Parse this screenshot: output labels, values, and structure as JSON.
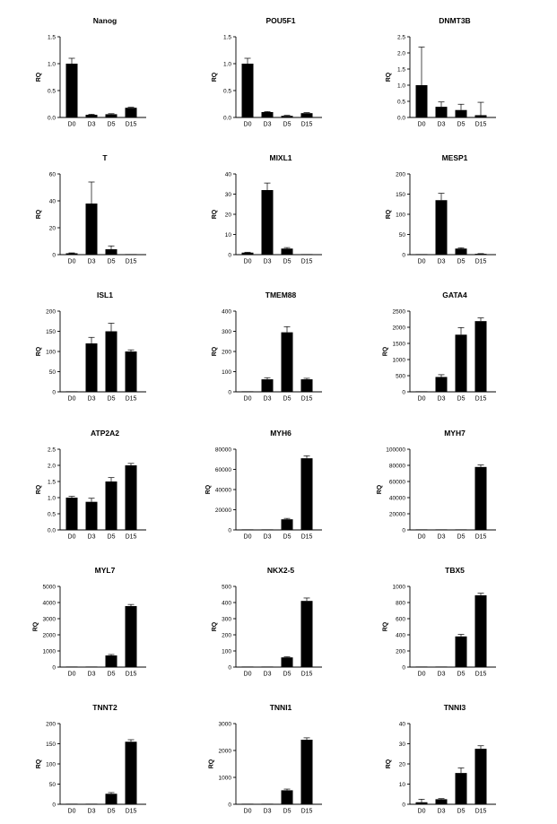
{
  "chart_data": [
    {
      "type": "bar",
      "title": "Nanog",
      "ylabel": "RQ",
      "categories": [
        "D0",
        "D3",
        "D5",
        "D15"
      ],
      "values": [
        1.0,
        0.05,
        0.06,
        0.18
      ],
      "errors": [
        0.1,
        0.01,
        0.01,
        0.01
      ],
      "ylim": [
        0,
        1.5
      ],
      "yticks": [
        "0.0",
        "0.5",
        "1.0",
        "1.5"
      ]
    },
    {
      "type": "bar",
      "title": "POU5F1",
      "ylabel": "RQ",
      "categories": [
        "D0",
        "D3",
        "D5",
        "D15"
      ],
      "values": [
        1.0,
        0.1,
        0.03,
        0.08
      ],
      "errors": [
        0.1,
        0.01,
        0.01,
        0.01
      ],
      "ylim": [
        0,
        1.5
      ],
      "yticks": [
        "0.0",
        "0.5",
        "1.0",
        "1.5"
      ]
    },
    {
      "type": "bar",
      "title": "DNMT3B",
      "ylabel": "RQ",
      "categories": [
        "D0",
        "D3",
        "D5",
        "D15"
      ],
      "values": [
        1.0,
        0.33,
        0.23,
        0.07
      ],
      "errors": [
        1.18,
        0.15,
        0.18,
        0.4
      ],
      "ylim": [
        0,
        2.5
      ],
      "yticks": [
        "0.0",
        "0.5",
        "1.0",
        "1.5",
        "2.0",
        "2.5"
      ]
    },
    {
      "type": "bar",
      "title": "T",
      "ylabel": "RQ",
      "categories": [
        "D0",
        "D3",
        "D5",
        "D15"
      ],
      "values": [
        1.0,
        38,
        4,
        0.2
      ],
      "errors": [
        0.3,
        16,
        2.5,
        0.1
      ],
      "ylim": [
        0,
        60
      ],
      "yticks": [
        "0",
        "20",
        "40",
        "60"
      ]
    },
    {
      "type": "bar",
      "title": "MIXL1",
      "ylabel": "RQ",
      "categories": [
        "D0",
        "D3",
        "D5",
        "D15"
      ],
      "values": [
        1.0,
        32,
        3,
        0.2
      ],
      "errors": [
        0.2,
        3.5,
        0.5,
        0.1
      ],
      "ylim": [
        0,
        40
      ],
      "yticks": [
        "0",
        "10",
        "20",
        "30",
        "40"
      ]
    },
    {
      "type": "bar",
      "title": "MESP1",
      "ylabel": "RQ",
      "categories": [
        "D0",
        "D3",
        "D5",
        "D15"
      ],
      "values": [
        1.0,
        135,
        15,
        2
      ],
      "errors": [
        0.2,
        17,
        2,
        0.5
      ],
      "ylim": [
        0,
        200
      ],
      "yticks": [
        "0",
        "50",
        "100",
        "150",
        "200"
      ]
    },
    {
      "type": "bar",
      "title": "ISL1",
      "ylabel": "RQ",
      "categories": [
        "D0",
        "D3",
        "D5",
        "D15"
      ],
      "values": [
        1.0,
        120,
        150,
        100
      ],
      "errors": [
        0.1,
        15,
        20,
        4
      ],
      "ylim": [
        0,
        200
      ],
      "yticks": [
        "0",
        "50",
        "100",
        "150",
        "200"
      ]
    },
    {
      "type": "bar",
      "title": "TMEM88",
      "ylabel": "RQ",
      "categories": [
        "D0",
        "D3",
        "D5",
        "D15"
      ],
      "values": [
        1.0,
        62,
        295,
        62
      ],
      "errors": [
        0.1,
        8,
        28,
        5
      ],
      "ylim": [
        0,
        400
      ],
      "yticks": [
        "0",
        "100",
        "200",
        "300",
        "400"
      ]
    },
    {
      "type": "bar",
      "title": "GATA4",
      "ylabel": "RQ",
      "categories": [
        "D0",
        "D3",
        "D5",
        "D15"
      ],
      "values": [
        1.0,
        460,
        1770,
        2190
      ],
      "errors": [
        0.1,
        70,
        220,
        100
      ],
      "ylim": [
        0,
        2500
      ],
      "yticks": [
        "0",
        "500",
        "1000",
        "1500",
        "2000",
        "2500"
      ]
    },
    {
      "type": "bar",
      "title": "ATP2A2",
      "ylabel": "RQ",
      "categories": [
        "D0",
        "D3",
        "D5",
        "D15"
      ],
      "values": [
        1.0,
        0.87,
        1.5,
        2.0
      ],
      "errors": [
        0.04,
        0.11,
        0.12,
        0.06
      ],
      "ylim": [
        0,
        2.5
      ],
      "yticks": [
        "0.0",
        "0.5",
        "1.0",
        "1.5",
        "2.0",
        "2.5"
      ]
    },
    {
      "type": "bar",
      "title": "MYH6",
      "ylabel": "RQ",
      "categories": [
        "D0",
        "D3",
        "D5",
        "D15"
      ],
      "values": [
        1.0,
        30,
        10500,
        71000
      ],
      "errors": [
        0.1,
        5,
        900,
        2500
      ],
      "ylim": [
        0,
        80000
      ],
      "yticks": [
        "0",
        "20000",
        "40000",
        "60000",
        "80000"
      ]
    },
    {
      "type": "bar",
      "title": "MYH7",
      "ylabel": "RQ",
      "categories": [
        "D0",
        "D3",
        "D5",
        "D15"
      ],
      "values": [
        1.0,
        5,
        200,
        78000
      ],
      "errors": [
        0.1,
        1,
        50,
        2500
      ],
      "ylim": [
        0,
        100000
      ],
      "yticks": [
        "0",
        "20000",
        "40000",
        "60000",
        "80000",
        "100000"
      ]
    },
    {
      "type": "bar",
      "title": "MYL7",
      "ylabel": "RQ",
      "categories": [
        "D0",
        "D3",
        "D5",
        "D15"
      ],
      "values": [
        1.0,
        20,
        720,
        3780
      ],
      "errors": [
        0.1,
        3,
        60,
        100
      ],
      "ylim": [
        0,
        5000
      ],
      "yticks": [
        "0",
        "1000",
        "2000",
        "3000",
        "4000",
        "5000"
      ]
    },
    {
      "type": "bar",
      "title": "NKX2-5",
      "ylabel": "RQ",
      "categories": [
        "D0",
        "D3",
        "D5",
        "D15"
      ],
      "values": [
        1.0,
        3,
        60,
        410
      ],
      "errors": [
        0.1,
        0.5,
        4,
        18
      ],
      "ylim": [
        0,
        500
      ],
      "yticks": [
        "0",
        "100",
        "200",
        "300",
        "400",
        "500"
      ]
    },
    {
      "type": "bar",
      "title": "TBX5",
      "ylabel": "RQ",
      "categories": [
        "D0",
        "D3",
        "D5",
        "D15"
      ],
      "values": [
        1.0,
        2,
        380,
        890
      ],
      "errors": [
        0.1,
        0.5,
        25,
        25
      ],
      "ylim": [
        0,
        1000
      ],
      "yticks": [
        "0",
        "200",
        "400",
        "600",
        "800",
        "1000"
      ]
    },
    {
      "type": "bar",
      "title": "TNNT2",
      "ylabel": "RQ",
      "categories": [
        "D0",
        "D3",
        "D5",
        "D15"
      ],
      "values": [
        1.0,
        0.5,
        26,
        155
      ],
      "errors": [
        0.3,
        0.1,
        3,
        5
      ],
      "ylim": [
        0,
        200
      ],
      "yticks": [
        "0",
        "50",
        "100",
        "150",
        "200"
      ]
    },
    {
      "type": "bar",
      "title": "TNNI1",
      "ylabel": "RQ",
      "categories": [
        "D0",
        "D3",
        "D5",
        "D15"
      ],
      "values": [
        1.0,
        5,
        520,
        2400
      ],
      "errors": [
        0.1,
        1,
        45,
        70
      ],
      "ylim": [
        0,
        3000
      ],
      "yticks": [
        "0",
        "1000",
        "2000",
        "3000"
      ]
    },
    {
      "type": "bar",
      "title": "TNNI3",
      "ylabel": "RQ",
      "categories": [
        "D0",
        "D3",
        "D5",
        "D15"
      ],
      "values": [
        1.0,
        2.5,
        15.5,
        27.5
      ],
      "errors": [
        1.5,
        0.3,
        2.5,
        1.5
      ],
      "ylim": [
        0,
        40
      ],
      "yticks": [
        "0",
        "10",
        "20",
        "30",
        "40"
      ]
    }
  ]
}
